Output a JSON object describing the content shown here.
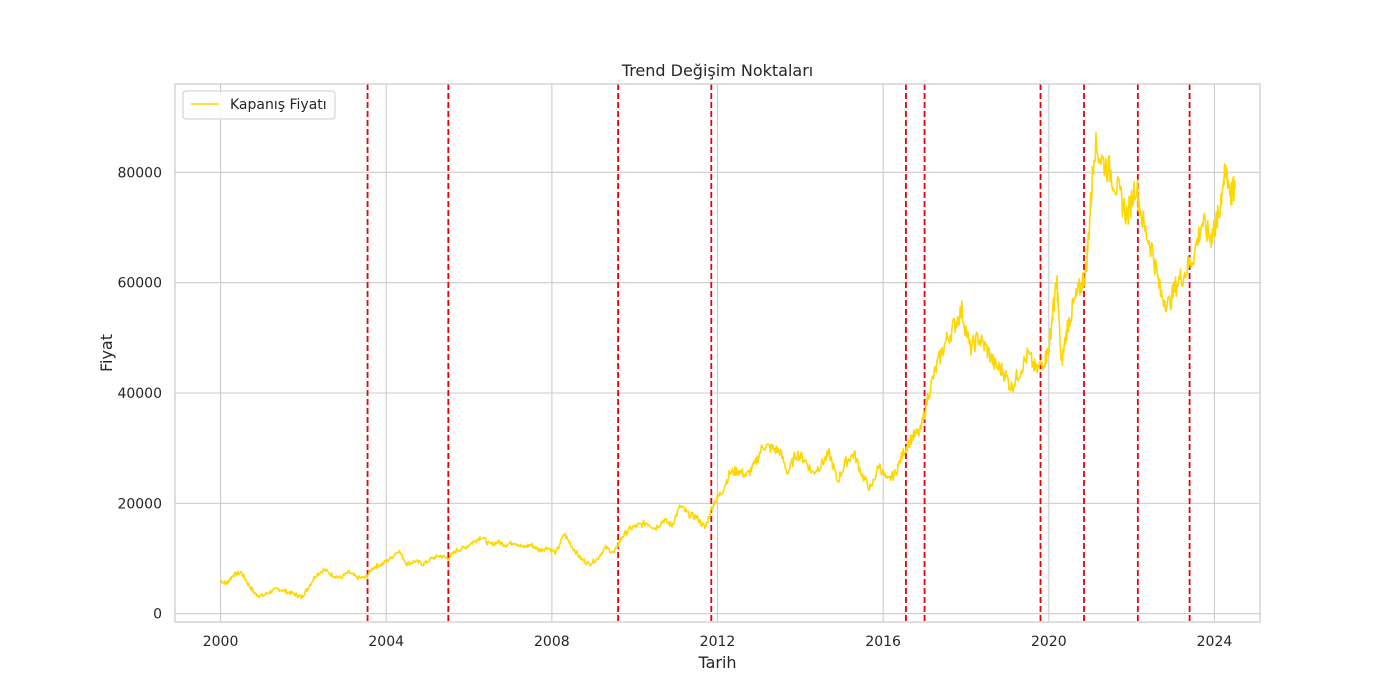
{
  "chart_data": {
    "type": "line",
    "title": "Trend Değişim Noktaları",
    "xlabel": "Tarih",
    "ylabel": "Fiyat",
    "xlim": [
      1998.9,
      2025.1
    ],
    "ylim": [
      -1500,
      96000
    ],
    "x_ticks": [
      2000,
      2004,
      2008,
      2012,
      2016,
      2020,
      2024
    ],
    "x_tick_labels": [
      "2000",
      "2004",
      "2008",
      "2012",
      "2016",
      "2020",
      "2024"
    ],
    "y_ticks": [
      0,
      20000,
      40000,
      60000,
      80000
    ],
    "y_tick_labels": [
      "0",
      "20000",
      "40000",
      "60000",
      "80000"
    ],
    "grid": true,
    "legend": {
      "placement": "top-left",
      "entries": [
        "Kapanış Fiyatı"
      ]
    },
    "colors": {
      "series": "#FFD700",
      "changepoint": "#e8000b",
      "grid": "#cccccc",
      "frame": "#cccccc"
    },
    "series": [
      {
        "name": "Kapanış Fiyatı",
        "x": [
          2000.0,
          2000.15,
          2000.3,
          2000.5,
          2000.7,
          2000.85,
          2001.0,
          2001.2,
          2001.4,
          2001.6,
          2001.8,
          2001.95,
          2002.1,
          2002.3,
          2002.5,
          2002.7,
          2002.9,
          2003.1,
          2003.3,
          2003.5,
          2003.7,
          2003.9,
          2004.1,
          2004.3,
          2004.5,
          2004.7,
          2004.9,
          2005.1,
          2005.3,
          2005.5,
          2005.7,
          2005.9,
          2006.1,
          2006.3,
          2006.5,
          2006.7,
          2006.9,
          2007.1,
          2007.3,
          2007.5,
          2007.7,
          2007.9,
          2008.1,
          2008.3,
          2008.5,
          2008.7,
          2008.9,
          2009.1,
          2009.3,
          2009.5,
          2009.7,
          2009.9,
          2010.1,
          2010.3,
          2010.5,
          2010.7,
          2010.9,
          2011.1,
          2011.3,
          2011.5,
          2011.7,
          2011.9,
          2012.1,
          2012.3,
          2012.5,
          2012.7,
          2012.9,
          2013.1,
          2013.3,
          2013.5,
          2013.7,
          2013.9,
          2014.1,
          2014.3,
          2014.5,
          2014.7,
          2014.9,
          2015.1,
          2015.3,
          2015.5,
          2015.7,
          2015.9,
          2016.1,
          2016.3,
          2016.5,
          2016.7,
          2016.9,
          2017.1,
          2017.3,
          2017.5,
          2017.7,
          2017.9,
          2018.1,
          2018.3,
          2018.5,
          2018.7,
          2018.9,
          2019.1,
          2019.3,
          2019.5,
          2019.7,
          2019.9,
          2020.0,
          2020.1,
          2020.2,
          2020.3,
          2020.45,
          2020.6,
          2020.75,
          2020.9,
          2021.0,
          2021.1,
          2021.3,
          2021.5,
          2021.7,
          2021.9,
          2022.1,
          2022.3,
          2022.5,
          2022.7,
          2022.9,
          2023.1,
          2023.3,
          2023.5,
          2023.7,
          2023.9,
          2024.0,
          2024.1,
          2024.2,
          2024.3,
          2024.4,
          2024.5
        ],
        "y": [
          6000,
          5500,
          7000,
          7500,
          5000,
          3500,
          3200,
          4000,
          4500,
          4000,
          3500,
          3000,
          4500,
          7000,
          8000,
          7000,
          6500,
          7500,
          6500,
          6500,
          8500,
          9000,
          10000,
          11500,
          9000,
          9500,
          9000,
          10000,
          10500,
          10000,
          11500,
          12000,
          13000,
          14000,
          12500,
          13000,
          12500,
          13000,
          12000,
          12500,
          11500,
          12000,
          11000,
          14500,
          12000,
          10000,
          9000,
          10000,
          12000,
          11000,
          14000,
          15500,
          16000,
          16500,
          15500,
          17000,
          16000,
          19500,
          18000,
          17500,
          15500,
          20000,
          22000,
          25500,
          26000,
          25000,
          27000,
          30500,
          30000,
          29500,
          25500,
          29000,
          28000,
          25500,
          27000,
          29000,
          24000,
          27500,
          29000,
          25000,
          22500,
          27000,
          24000,
          25500,
          29500,
          32000,
          33000,
          40000,
          45000,
          49000,
          52000,
          55000,
          48000,
          50000,
          48000,
          45000,
          44000,
          41000,
          44000,
          47000,
          44000,
          46000,
          48000,
          55000,
          60000,
          45000,
          52000,
          56000,
          59000,
          62000,
          73000,
          85000,
          82000,
          80000,
          76000,
          72000,
          78000,
          70000,
          66000,
          58000,
          56000,
          60000,
          62000,
          65000,
          71000,
          68000,
          70000,
          72000,
          78000,
          80000,
          76000,
          77000
        ]
      }
    ],
    "changepoints": [
      2003.55,
      2005.5,
      2009.6,
      2011.85,
      2016.55,
      2017.0,
      2019.8,
      2020.85,
      2022.15,
      2023.4
    ]
  }
}
